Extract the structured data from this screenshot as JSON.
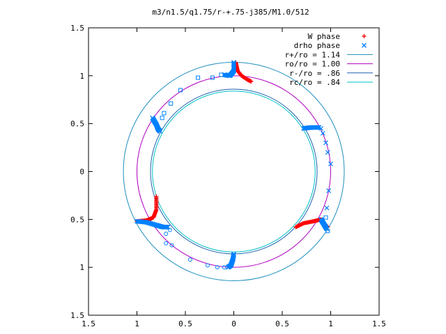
{
  "chart_data": {
    "type": "scatter",
    "title": "m3/n1.5/q1.75/r-+.75-j385/M1.0/512",
    "xlim": [
      -1.5,
      1.5
    ],
    "ylim": [
      -1.5,
      1.5
    ],
    "x_ticks": [
      -1.5,
      -1,
      -0.5,
      0,
      0.5,
      1,
      1.5
    ],
    "x_tick_labels": [
      "1.5",
      "1",
      "0.5",
      "0",
      "0.5",
      "1",
      "1.5"
    ],
    "y_ticks": [
      1.5,
      1,
      0.5,
      0,
      -0.5,
      -1,
      -1.5
    ],
    "y_tick_labels": [
      "1.5",
      "1",
      "0.5",
      "0",
      "0.5",
      "1",
      "1.5"
    ],
    "grid": false,
    "legend_position": "top-right",
    "series": [
      {
        "name": "W phase",
        "kind": "points",
        "marker": "plus",
        "color": "#ff0000"
      },
      {
        "name": "drho phase",
        "kind": "points",
        "marker": "cross",
        "color": "#0080ff"
      },
      {
        "name": "r+/ro = 1.14",
        "kind": "circle",
        "radius": 1.14,
        "color": "#1f8fbf"
      },
      {
        "name": "ro/ro = 1.00",
        "kind": "circle",
        "radius": 1.0,
        "color": "#b000c0"
      },
      {
        "name": "r-/ro = .86",
        "kind": "circle",
        "radius": 0.86,
        "color": "#2060b0"
      },
      {
        "name": "rc/ro = .84",
        "kind": "circle",
        "radius": 0.84,
        "color": "#00c0c0"
      }
    ],
    "arms": [
      {
        "center_deg": 90,
        "w_dense": [
          [
            0.02,
            1.14
          ],
          [
            0.04,
            1.05
          ],
          [
            0.08,
            1.0
          ],
          [
            0.14,
            0.96
          ],
          [
            0.18,
            0.94
          ]
        ],
        "d_dense": [
          [
            0.0,
            1.14
          ],
          [
            0.0,
            1.05
          ],
          [
            -0.04,
            1.0
          ],
          [
            -0.1,
            1.01
          ]
        ],
        "d_sparse": [
          [
            -0.13,
            1.01
          ],
          [
            -0.22,
            0.98
          ],
          [
            -0.37,
            0.98
          ],
          [
            -0.55,
            0.85
          ],
          [
            -0.65,
            0.71
          ],
          [
            -0.72,
            0.61
          ],
          [
            -0.74,
            0.56
          ]
        ]
      },
      {
        "center_deg": 210,
        "w_dense": [
          [
            -0.8,
            -0.26
          ],
          [
            -0.8,
            -0.4
          ],
          [
            -0.83,
            -0.48
          ],
          [
            -0.9,
            -0.51
          ],
          [
            -1.0,
            -0.52
          ]
        ],
        "d_dense": [
          [
            -1.0,
            -0.52
          ],
          [
            -0.9,
            -0.53
          ],
          [
            -0.8,
            -0.56
          ],
          [
            -0.73,
            -0.58
          ],
          [
            -0.68,
            -0.58
          ]
        ],
        "d_sparse": [
          [
            -0.66,
            -0.61
          ],
          [
            -0.7,
            -0.65
          ],
          [
            -0.7,
            -0.75
          ],
          [
            -0.64,
            -0.77
          ],
          [
            -0.45,
            -0.92
          ],
          [
            -0.27,
            -0.98
          ],
          [
            -0.17,
            -1.0
          ],
          [
            -0.1,
            -1.0
          ]
        ]
      },
      {
        "center_deg": 330,
        "w_dense": [
          [
            0.64,
            -0.58
          ],
          [
            0.72,
            -0.54
          ],
          [
            0.82,
            -0.52
          ],
          [
            0.9,
            -0.5
          ],
          [
            0.97,
            -0.58
          ]
        ],
        "d_dense": [
          [
            0.9,
            -0.5
          ],
          [
            0.93,
            -0.55
          ],
          [
            0.96,
            -0.6
          ]
        ],
        "d_sparse": [
          [
            0.97,
            -0.62
          ],
          [
            0.95,
            -0.48
          ],
          [
            0.96,
            -0.38
          ],
          [
            0.98,
            -0.2
          ],
          [
            1.0,
            0.08
          ],
          [
            0.97,
            0.2
          ],
          [
            0.95,
            0.3
          ],
          [
            0.92,
            0.4
          ],
          [
            0.9,
            0.45
          ]
        ]
      },
      {
        "center_deg": 30,
        "d_dense": [
          [
            0.72,
            0.45
          ],
          [
            0.8,
            0.46
          ],
          [
            0.88,
            0.46
          ]
        ]
      },
      {
        "center_deg": 150,
        "d_dense": [
          [
            -0.84,
            0.56
          ],
          [
            -0.8,
            0.49
          ],
          [
            -0.78,
            0.44
          ],
          [
            -0.76,
            0.42
          ]
        ]
      },
      {
        "center_deg": 270,
        "d_dense": [
          [
            0.0,
            -0.86
          ],
          [
            -0.01,
            -0.92
          ],
          [
            -0.03,
            -0.98
          ],
          [
            -0.06,
            -1.0
          ]
        ]
      }
    ]
  }
}
